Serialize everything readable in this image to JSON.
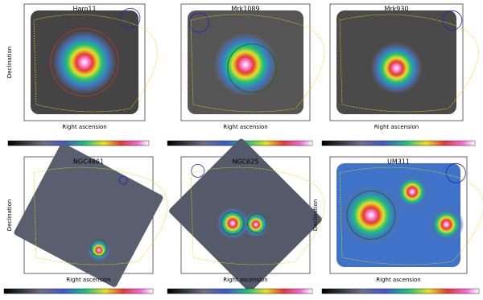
{
  "panels": [
    {
      "title": "Haro11",
      "x_label": "Right ascension",
      "y_label": "Declination"
    },
    {
      "title": "Mrk1089",
      "x_label": "Right ascension"
    },
    {
      "title": "Mrk930",
      "x_label": "Right ascension"
    },
    {
      "title": "NGC4861",
      "x_label": "Right ascension",
      "y_label": "Declination"
    },
    {
      "title": "NGC625",
      "x_label": "Right ascension"
    },
    {
      "title": "UM311",
      "x_label": "Right ascension",
      "y_label": "Declination"
    }
  ]
}
